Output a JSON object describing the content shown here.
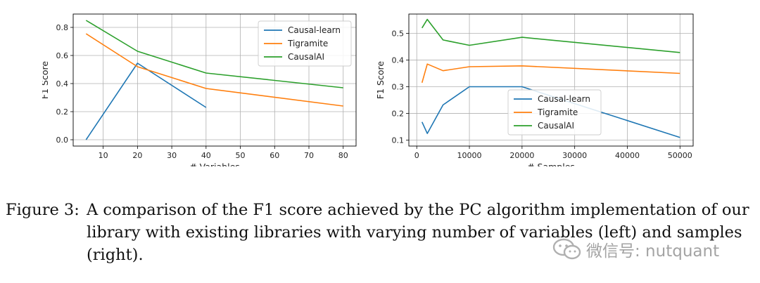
{
  "chart_data": [
    {
      "type": "line",
      "xlabel": "# Variables",
      "ylabel": "F1 Score",
      "xlim": [
        1.25,
        83.75
      ],
      "ylim": [
        -0.045,
        0.895
      ],
      "xticks": [
        10,
        20,
        30,
        40,
        50,
        60,
        70,
        80
      ],
      "yticks": [
        0.0,
        0.2,
        0.4,
        0.6,
        0.8
      ],
      "ytick_labels": [
        "0.0",
        "0.2",
        "0.4",
        "0.6",
        "0.8"
      ],
      "grid": true,
      "legend_position": "top-right",
      "series": [
        {
          "name": "Causal-learn",
          "color": "#1f77b4",
          "x": [
            5,
            20,
            40
          ],
          "y": [
            0.0,
            0.545,
            0.23
          ]
        },
        {
          "name": "Tigramite",
          "color": "#ff7f0e",
          "x": [
            5,
            20,
            40,
            80
          ],
          "y": [
            0.755,
            0.52,
            0.365,
            0.24
          ]
        },
        {
          "name": "CausalAI",
          "color": "#2ca02c",
          "x": [
            5,
            20,
            40,
            80
          ],
          "y": [
            0.85,
            0.63,
            0.475,
            0.37
          ]
        }
      ]
    },
    {
      "type": "line",
      "xlabel": "# Samples",
      "ylabel": "F1 Score",
      "xlim": [
        -1500,
        52500
      ],
      "ylim": [
        0.078,
        0.572
      ],
      "xticks": [
        0,
        10000,
        20000,
        30000,
        40000,
        50000
      ],
      "yticks": [
        0.1,
        0.2,
        0.3,
        0.4,
        0.5
      ],
      "ytick_labels": [
        "0.1",
        "0.2",
        "0.3",
        "0.4",
        "0.5"
      ],
      "grid": true,
      "legend_position": "bottom-center",
      "series": [
        {
          "name": "Causal-learn",
          "color": "#1f77b4",
          "x": [
            1000,
            2000,
            5000,
            10000,
            20000,
            50000
          ],
          "y": [
            0.168,
            0.125,
            0.232,
            0.3,
            0.3,
            0.11
          ]
        },
        {
          "name": "Tigramite",
          "color": "#ff7f0e",
          "x": [
            1000,
            2000,
            5000,
            10000,
            20000,
            50000
          ],
          "y": [
            0.315,
            0.385,
            0.36,
            0.375,
            0.378,
            0.35
          ]
        },
        {
          "name": "CausalAI",
          "color": "#2ca02c",
          "x": [
            1000,
            2000,
            5000,
            10000,
            20000,
            50000
          ],
          "y": [
            0.52,
            0.552,
            0.475,
            0.455,
            0.485,
            0.428
          ]
        }
      ]
    }
  ],
  "caption": {
    "label": "Figure 3:",
    "text": "A comparison of the F1 score achieved by the PC algorithm implementation of our library with existing libraries with varying number of variables (left) and samples (right)."
  },
  "watermark": {
    "text": "微信号: nutquant",
    "icon": "wechat-icon"
  }
}
